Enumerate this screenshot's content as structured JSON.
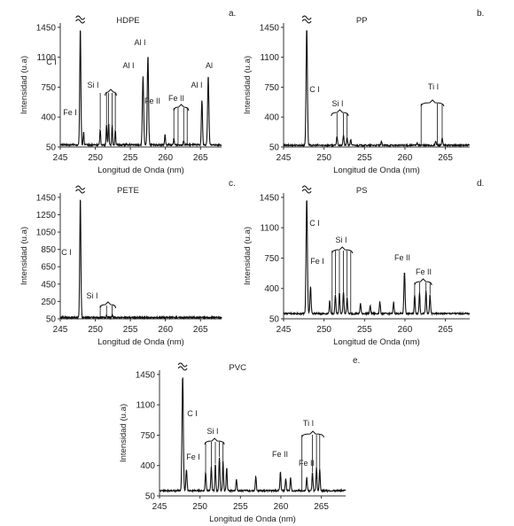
{
  "chart_data": [
    {
      "panel": "a.",
      "type": "line",
      "title": "HDPE",
      "xlabel": "Longitud de Onda (nm)",
      "ylabel": "Intensidad (u.a)",
      "xlim": [
        245,
        268
      ],
      "ylim": [
        50,
        1500
      ],
      "x_ticks": [
        "245",
        "250",
        "255",
        "260",
        "265"
      ],
      "y_ticks": [
        "50",
        "400",
        "750",
        "1100",
        "1450"
      ],
      "baseline": 75,
      "peaks": [
        {
          "x": 247.86,
          "y": 1450,
          "w": 0.08
        },
        {
          "x": 248.33,
          "y": 230,
          "w": 0.06
        },
        {
          "x": 250.7,
          "y": 260,
          "w": 0.06
        },
        {
          "x": 251.6,
          "y": 320,
          "w": 0.06
        },
        {
          "x": 251.9,
          "y": 330,
          "w": 0.06
        },
        {
          "x": 252.4,
          "y": 300,
          "w": 0.06
        },
        {
          "x": 252.85,
          "y": 250,
          "w": 0.06
        },
        {
          "x": 256.8,
          "y": 880,
          "w": 0.09
        },
        {
          "x": 257.5,
          "y": 1120,
          "w": 0.09
        },
        {
          "x": 259.94,
          "y": 200,
          "w": 0.06
        },
        {
          "x": 261.2,
          "y": 150,
          "w": 0.06
        },
        {
          "x": 262.6,
          "y": 130,
          "w": 0.06
        },
        {
          "x": 265.2,
          "y": 600,
          "w": 0.08
        },
        {
          "x": 266.1,
          "y": 880,
          "w": 0.09
        }
      ],
      "annotations": [
        "C I",
        "Fe I",
        "Si I",
        "Al I",
        "Al I",
        "Fe II",
        "Fe II",
        "Al I",
        "Al"
      ]
    },
    {
      "panel": "b.",
      "type": "line",
      "title": "PP",
      "xlabel": "Longitud de Onda (nm)",
      "ylabel": "Intensidad (u.a)",
      "xlim": [
        245,
        268
      ],
      "ylim": [
        50,
        1500
      ],
      "x_ticks": [
        "245",
        "250",
        "255",
        "260",
        "265"
      ],
      "y_ticks": [
        "50",
        "400",
        "750",
        "1100",
        "1450"
      ],
      "baseline": 70,
      "peaks": [
        {
          "x": 247.86,
          "y": 1450,
          "w": 0.08
        },
        {
          "x": 251.6,
          "y": 180,
          "w": 0.06
        },
        {
          "x": 252.4,
          "y": 190,
          "w": 0.06
        },
        {
          "x": 252.85,
          "y": 160,
          "w": 0.06
        },
        {
          "x": 253.3,
          "y": 140,
          "w": 0.06
        },
        {
          "x": 257.1,
          "y": 110,
          "w": 0.06
        },
        {
          "x": 261.5,
          "y": 100,
          "w": 0.06
        },
        {
          "x": 263.8,
          "y": 120,
          "w": 0.06
        },
        {
          "x": 264.6,
          "y": 150,
          "w": 0.06
        }
      ],
      "annotations": [
        "C I",
        "Si I",
        "Ti I"
      ]
    },
    {
      "panel": "c.",
      "type": "line",
      "title": "PETE",
      "xlabel": "Longitud de Onda (nm)",
      "ylabel": "Intensidad (u.a)",
      "xlim": [
        245,
        268
      ],
      "ylim": [
        50,
        1500
      ],
      "x_ticks": [
        "245",
        "250",
        "255",
        "260",
        "265"
      ],
      "y_ticks": [
        "50",
        "250",
        "450",
        "650",
        "850",
        "1050",
        "1250",
        "1450"
      ],
      "baseline": 65,
      "peaks": [
        {
          "x": 247.86,
          "y": 1450,
          "w": 0.08
        },
        {
          "x": 251.6,
          "y": 95,
          "w": 0.06
        },
        {
          "x": 252.4,
          "y": 90,
          "w": 0.06
        }
      ],
      "annotations": [
        "C I",
        "Si I"
      ]
    },
    {
      "panel": "d.",
      "type": "line",
      "title": "PS",
      "xlabel": "Longitud de Onda (nm)",
      "ylabel": "Intensidad (u.a)",
      "xlim": [
        245,
        268
      ],
      "ylim": [
        50,
        1500
      ],
      "x_ticks": [
        "245",
        "250",
        "255",
        "260",
        "265"
      ],
      "y_ticks": [
        "50",
        "400",
        "750",
        "1100",
        "1450"
      ],
      "baseline": 110,
      "peaks": [
        {
          "x": 247.86,
          "y": 1450,
          "w": 0.08
        },
        {
          "x": 248.33,
          "y": 420,
          "w": 0.07
        },
        {
          "x": 250.7,
          "y": 260,
          "w": 0.06
        },
        {
          "x": 251.4,
          "y": 330,
          "w": 0.06
        },
        {
          "x": 251.9,
          "y": 350,
          "w": 0.06
        },
        {
          "x": 252.4,
          "y": 360,
          "w": 0.06
        },
        {
          "x": 252.85,
          "y": 300,
          "w": 0.06
        },
        {
          "x": 254.5,
          "y": 230,
          "w": 0.06
        },
        {
          "x": 255.7,
          "y": 200,
          "w": 0.06
        },
        {
          "x": 256.9,
          "y": 250,
          "w": 0.06
        },
        {
          "x": 258.6,
          "y": 240,
          "w": 0.06
        },
        {
          "x": 259.94,
          "y": 600,
          "w": 0.07
        },
        {
          "x": 261.2,
          "y": 320,
          "w": 0.06
        },
        {
          "x": 261.8,
          "y": 350,
          "w": 0.06
        },
        {
          "x": 262.6,
          "y": 370,
          "w": 0.06
        },
        {
          "x": 263.1,
          "y": 330,
          "w": 0.06
        }
      ],
      "annotations": [
        "C I",
        "Fe I",
        "Si I",
        "Fe II",
        "Fe II"
      ]
    },
    {
      "panel": "e.",
      "type": "line",
      "title": "PVC",
      "xlabel": "Longitud de Onda (nm)",
      "ylabel": "Intensidad (u.a)",
      "xlim": [
        245,
        268
      ],
      "ylim": [
        50,
        1500
      ],
      "x_ticks": [
        "245",
        "250",
        "255",
        "260",
        "265"
      ],
      "y_ticks": [
        "50",
        "400",
        "750",
        "1100",
        "1450"
      ],
      "baseline": 110,
      "peaks": [
        {
          "x": 247.86,
          "y": 1450,
          "w": 0.08
        },
        {
          "x": 248.33,
          "y": 360,
          "w": 0.07
        },
        {
          "x": 250.7,
          "y": 320,
          "w": 0.06
        },
        {
          "x": 251.4,
          "y": 380,
          "w": 0.06
        },
        {
          "x": 251.9,
          "y": 420,
          "w": 0.06
        },
        {
          "x": 252.4,
          "y": 500,
          "w": 0.06
        },
        {
          "x": 252.85,
          "y": 450,
          "w": 0.06
        },
        {
          "x": 253.3,
          "y": 380,
          "w": 0.06
        },
        {
          "x": 254.5,
          "y": 250,
          "w": 0.06
        },
        {
          "x": 256.9,
          "y": 280,
          "w": 0.06
        },
        {
          "x": 259.94,
          "y": 330,
          "w": 0.06
        },
        {
          "x": 260.6,
          "y": 250,
          "w": 0.06
        },
        {
          "x": 261.2,
          "y": 260,
          "w": 0.06
        },
        {
          "x": 263.2,
          "y": 260,
          "w": 0.06
        },
        {
          "x": 263.9,
          "y": 320,
          "w": 0.06
        },
        {
          "x": 264.4,
          "y": 380,
          "w": 0.06
        },
        {
          "x": 264.8,
          "y": 360,
          "w": 0.06
        }
      ],
      "annotations": [
        "C I",
        "Fe I",
        "Si I",
        "Fe II",
        "Ti I",
        "Fe II"
      ]
    }
  ]
}
